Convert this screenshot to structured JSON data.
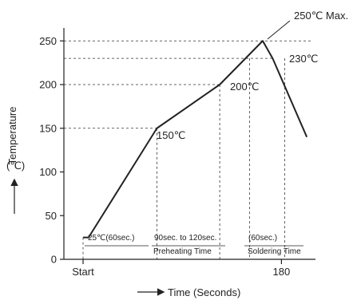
{
  "chart_data": {
    "type": "line",
    "x": [
      0,
      5,
      67,
      124,
      163,
      172,
      203
    ],
    "y": [
      25,
      25,
      150,
      200,
      250,
      230,
      140
    ],
    "xlabel": "Time (Seconds)",
    "ylabel": "Temperature",
    "yunit": "(℃)",
    "x_ticks": [
      {
        "value": 0,
        "label": "Start"
      },
      {
        "value": 180,
        "label": "180"
      }
    ],
    "y_ticks": [
      0,
      50,
      100,
      150,
      200,
      250
    ],
    "ylim": [
      0,
      250
    ],
    "grid": false,
    "guides": {
      "horizontal": [
        150,
        200,
        230,
        250
      ],
      "vertical": [
        67,
        124,
        151,
        183
      ]
    },
    "annotations": {
      "peak": "250℃ Max.",
      "p230": "230℃",
      "p200": "200℃",
      "p150": "150℃",
      "start_temp": "25℃(60sec.)",
      "preheat_span": "90sec. to 120sec.",
      "preheat_label": "Preheating Time",
      "solder_span": "(60sec.)",
      "solder_label": "Soldering Time"
    },
    "colors": {
      "line": "#222222",
      "guide": "#333333"
    }
  }
}
